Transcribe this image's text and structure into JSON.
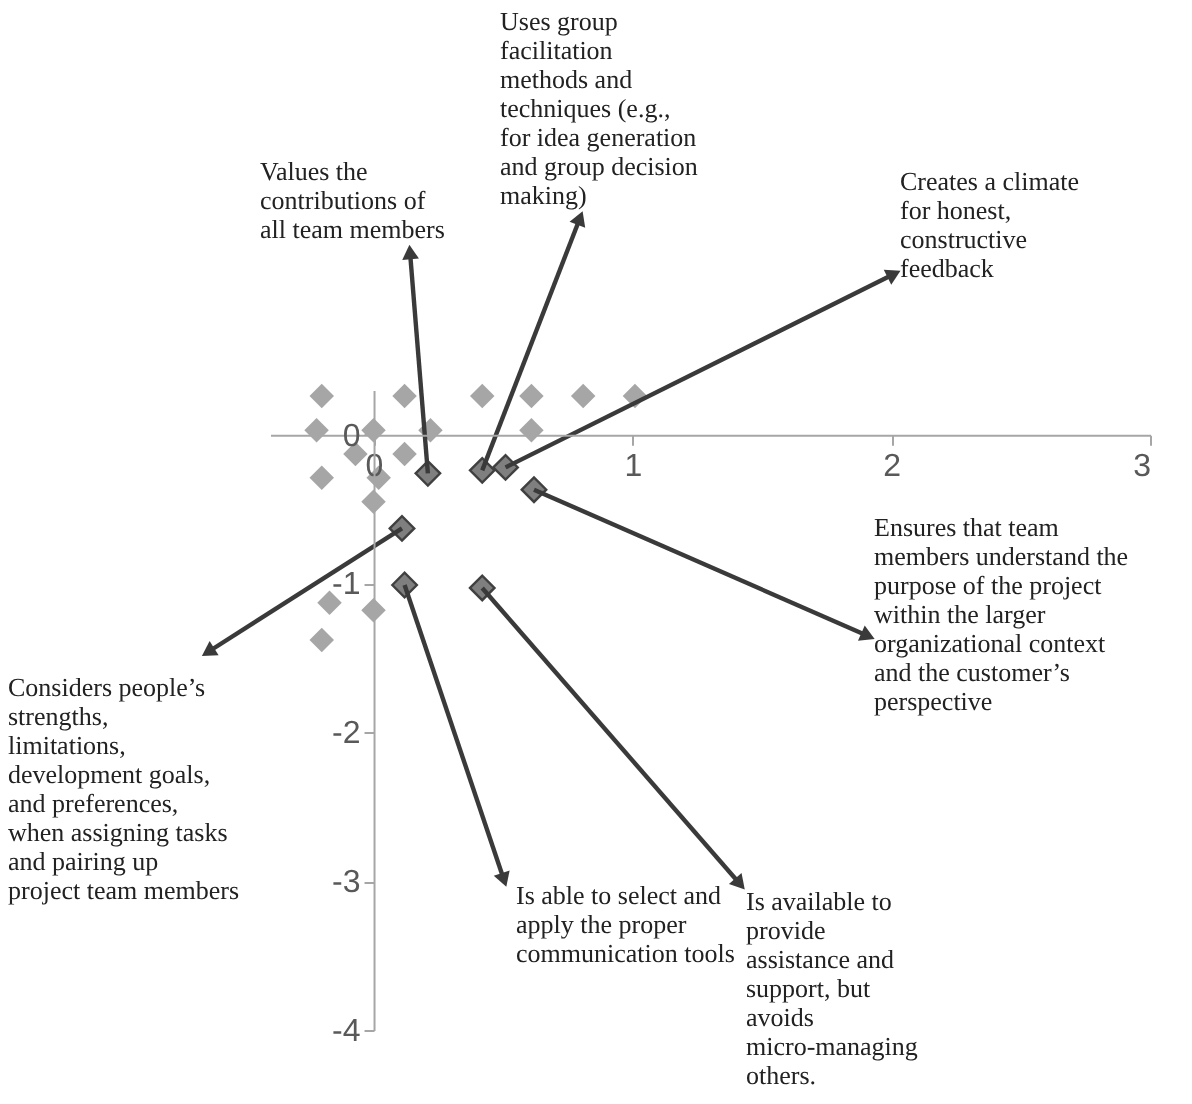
{
  "chart_data": {
    "type": "scatter",
    "xlim": [
      -0.4,
      3
    ],
    "ylim": [
      -4,
      0.3
    ],
    "xticks": [
      0,
      1,
      2,
      3
    ],
    "yticks": [
      0,
      -1,
      -2,
      -3,
      -4
    ],
    "marker": "diamond",
    "grid": false,
    "legend": false,
    "series": [
      {
        "color": "#7f7f7f",
        "x": [
          0.21,
          0.42,
          0.51,
          0.62,
          0.11,
          0.12,
          0.42
        ],
        "values": [
          -0.26,
          -0.24,
          -0.22,
          -0.37,
          -0.63,
          -1.01,
          -1.03
        ]
      },
      {
        "color": "#a6a6a6",
        "x": [
          -0.2,
          0.12,
          0.42,
          0.61,
          0.81,
          1.01,
          -0.22,
          0,
          0.22,
          0.61,
          -0.07,
          0.12,
          -0.2,
          0.02,
          0,
          -0.17,
          -0.2,
          0
        ],
        "values": [
          0.26,
          0.26,
          0.26,
          0.26,
          0.26,
          0.26,
          0.03,
          0.03,
          0.03,
          0.03,
          -0.13,
          -0.13,
          -0.29,
          -0.29,
          -0.45,
          -1.13,
          -1.38,
          -1.18
        ]
      }
    ],
    "annotations": [
      {
        "text": "Values the contributions of all team members",
        "x": 0.21,
        "y": -0.26
      },
      {
        "text": "Uses group facilitation methods and techniques (e.g., for idea generation and group decision making)",
        "x": 0.42,
        "y": -0.24
      },
      {
        "text": "Creates a climate for honest, constructive feedback",
        "x": 0.51,
        "y": -0.22
      },
      {
        "text": "Ensures that team members understand the purpose of the project within the larger organizational context and the customer’s perspective",
        "x": 0.62,
        "y": -0.37
      },
      {
        "text": "Considers people’s strengths, limitations, development goals, and preferences, when assigning tasks and pairing up project team members",
        "x": 0.11,
        "y": -0.63
      },
      {
        "text": "Is able to select and apply the proper communication tools",
        "x": 0.12,
        "y": -1.01
      },
      {
        "text": "Is available to provide assistance and support, but avoids micro-managing others.",
        "x": 0.42,
        "y": -1.03
      }
    ]
  }
}
